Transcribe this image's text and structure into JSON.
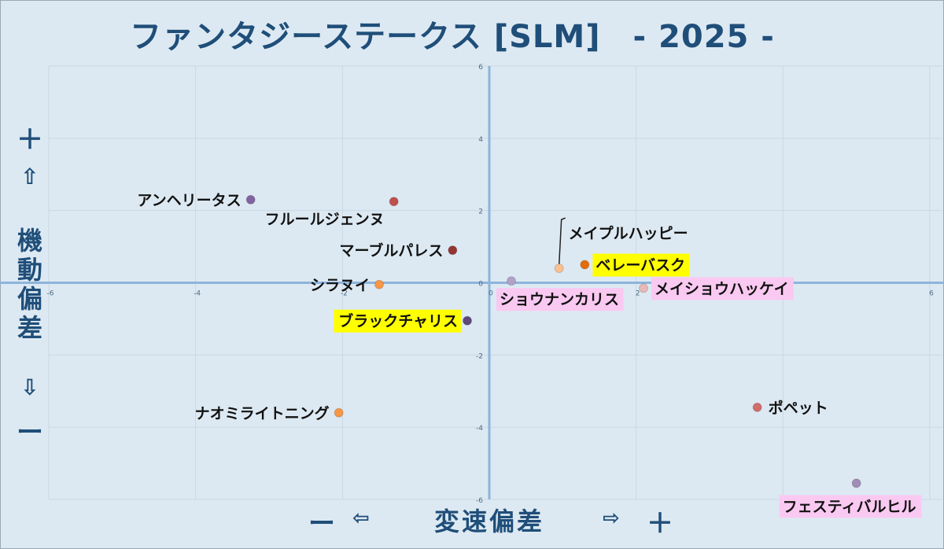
{
  "chart_data": {
    "type": "scatter",
    "title": "ファンタジーステークス [SLM]　- 2025 -",
    "xlabel": "変速偏差",
    "ylabel": "機動偏差",
    "x_minus": "ー",
    "x_left_arrow": "⇦",
    "x_right_arrow": "⇨",
    "x_plus": "＋",
    "y_plus": "＋",
    "y_up_arrow": "⇧",
    "y_down_arrow": "⇩",
    "y_minus": "ー",
    "xlim": [
      -6,
      6
    ],
    "ylim": [
      -6,
      6
    ],
    "x_ticks": [
      "-6",
      "-4",
      "-2",
      "0",
      "2",
      "4",
      "6"
    ],
    "y_ticks": [
      "6",
      "4",
      "2",
      "0",
      "-2",
      "-4",
      "-6"
    ],
    "grid": true,
    "points": [
      {
        "label": "アンヘリータス",
        "x": -3.25,
        "y": 2.3,
        "color": "#8064a2",
        "highlight": "none",
        "label_side": "left"
      },
      {
        "label": "フルールジェンヌ",
        "x": -1.3,
        "y": 2.25,
        "color": "#c0504d",
        "highlight": "none",
        "label_side": "below-left"
      },
      {
        "label": "マーブルパレス",
        "x": -0.5,
        "y": 0.9,
        "color": "#943634",
        "highlight": "none",
        "label_side": "left"
      },
      {
        "label": "シラヌイ",
        "x": -1.5,
        "y": -0.05,
        "color": "#f79646",
        "highlight": "none",
        "label_side": "left"
      },
      {
        "label": "ブラックチャリス",
        "x": -0.3,
        "y": -1.05,
        "color": "#5f497a",
        "highlight": "yellow",
        "label_side": "left"
      },
      {
        "label": "ナオミライトニング",
        "x": -2.05,
        "y": -3.6,
        "color": "#f79646",
        "highlight": "none",
        "label_side": "left"
      },
      {
        "label": "ショウナンカリス",
        "x": 0.3,
        "y": 0.05,
        "color": "#b3a2c7",
        "highlight": "pink",
        "label_side": "below-right"
      },
      {
        "label": "メイプルハッピー",
        "x": 0.95,
        "y": 0.4,
        "color": "#fac090",
        "highlight": "none",
        "label_side": "above-leader"
      },
      {
        "label": "ベレーバスク",
        "x": 1.3,
        "y": 0.5,
        "color": "#e46c0a",
        "highlight": "yellow",
        "label_side": "right"
      },
      {
        "label": "メイショウハッケイ",
        "x": 2.1,
        "y": -0.15,
        "color": "#e6b9b8",
        "highlight": "pink",
        "label_side": "right"
      },
      {
        "label": "ポペット",
        "x": 3.65,
        "y": -3.45,
        "color": "#d16d6a",
        "highlight": "none",
        "label_side": "right"
      },
      {
        "label": "フェスティバルヒル",
        "x": 5.0,
        "y": -5.55,
        "color": "#a08cb8",
        "highlight": "pink",
        "label_side": "below"
      }
    ]
  }
}
